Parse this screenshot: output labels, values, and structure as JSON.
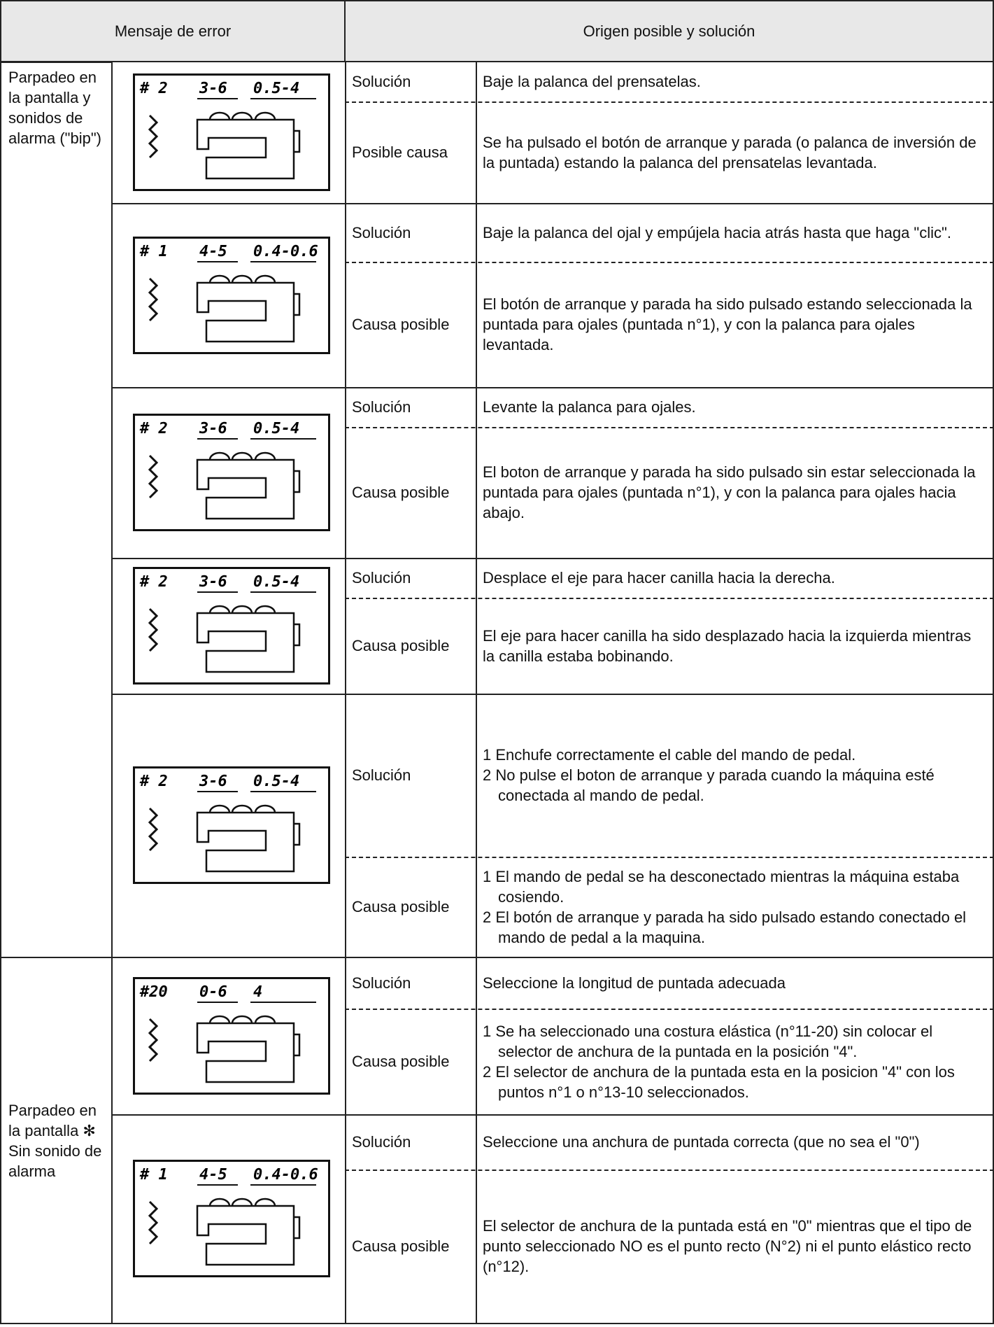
{
  "header": {
    "error_message": "Mensaje de error",
    "origin": "Origen posible y solución"
  },
  "groups": [
    {
      "label": "Parpadeo en la pantalla y sonidos de alarma (\"bip\")",
      "rows": [
        {
          "display": {
            "pattern": "# 2",
            "length": "3-6",
            "width": "0.5-4"
          },
          "solution_label": "Solución",
          "solution": "Baje la palanca del prensatelas.",
          "cause_label": "Posible causa",
          "cause": "Se ha pulsado el botón de arranque y parada (o palanca de inversión de la puntada) estando la palanca del prensatelas levantada."
        },
        {
          "display": {
            "pattern": "# 1",
            "length": "4-5",
            "width": "0.4-0.6"
          },
          "solution_label": "Solución",
          "solution": "Baje la palanca del ojal y empújela hacia atrás hasta que haga \"clic\".",
          "cause_label": "Causa posible",
          "cause": "El botón de arranque y parada ha sido pulsado estando seleccionada la puntada para ojales (puntada n°1), y con la palanca para ojales levantada."
        },
        {
          "display": {
            "pattern": "# 2",
            "length": "3-6",
            "width": "0.5-4"
          },
          "solution_label": "Solución",
          "solution": "Levante la palanca para ojales.",
          "cause_label": "Causa posible",
          "cause": "El boton de arranque y parada ha sido pulsado sin estar seleccionada la puntada para ojales (puntada n°1), y con la palanca para ojales hacia abajo."
        },
        {
          "display": {
            "pattern": "# 2",
            "length": "3-6",
            "width": "0.5-4"
          },
          "solution_label": "Solución",
          "solution": "Desplace el eje para hacer canilla hacia la derecha.",
          "cause_label": "Causa posible",
          "cause": "El eje para hacer canilla ha sido desplazado hacia la izquierda mientras la canilla estaba bobinando."
        },
        {
          "display": {
            "pattern": "# 2",
            "length": "3-6",
            "width": "0.5-4"
          },
          "solution_label": "Solución",
          "solution": [
            "1 Enchufe correctamente el cable del mando de pedal.",
            "2 No pulse el boton de arranque y parada cuando la máquina esté conectada al mando de pedal."
          ],
          "cause_label": "Causa posible",
          "cause": [
            "1 El mando de pedal se ha desconectado mientras la máquina estaba cosiendo.",
            "2 El botón de arranque y parada ha sido pulsado estando conectado el mando de pedal a la maquina."
          ]
        }
      ]
    },
    {
      "label": "Parpadeo en la pantalla ✻ Sin sonido de alarma",
      "rows": [
        {
          "display": {
            "pattern": "#20",
            "length": "0-6",
            "width": "4"
          },
          "solution_label": "Solución",
          "solution": "Seleccione la longitud de puntada adecuada",
          "cause_label": "Causa posible",
          "cause": [
            "1 Se ha seleccionado una costura elástica (n°11-20) sin colocar el selector de anchura de la puntada en la posición \"4\".",
            "2 El selector de anchura de la puntada esta en la posicion \"4\" con los puntos n°1 o n°13-10 seleccionados."
          ]
        },
        {
          "display": {
            "pattern": "# 1",
            "length": "4-5",
            "width": "0.4-0.6"
          },
          "solution_label": "Solución",
          "solution": "Seleccione una anchura de puntada correcta (que no sea el \"0\")",
          "cause_label": "Causa posible",
          "cause": "El selector de anchura de la puntada está en \"0\" mientras que el tipo de punto seleccionado NO es el punto recto (N°2) ni el punto elástico recto (n°12)."
        }
      ]
    }
  ]
}
